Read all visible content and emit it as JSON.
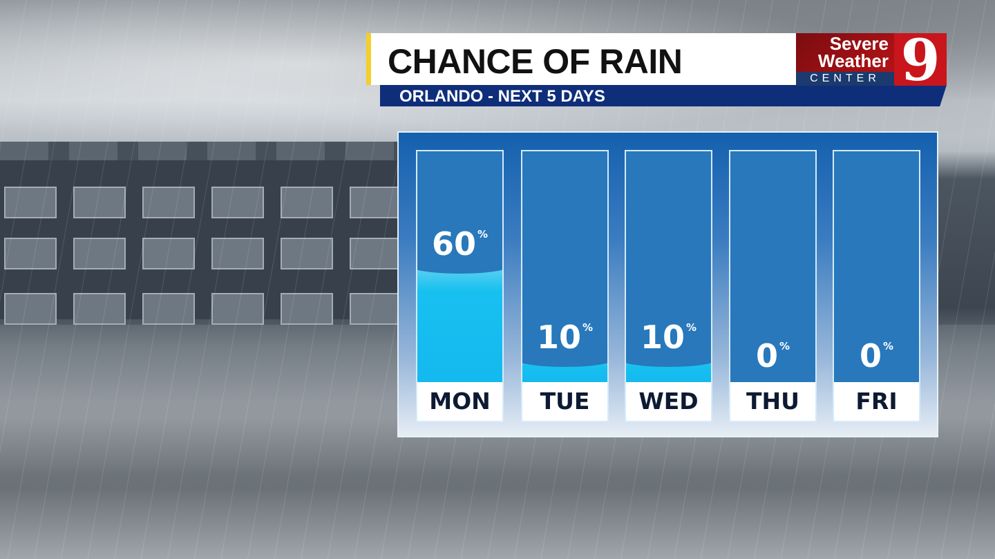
{
  "header": {
    "title": "CHANCE OF RAIN",
    "subtitle": "ORLANDO - NEXT 5 DAYS"
  },
  "logo": {
    "line1": "Severe",
    "line2": "Weather",
    "line3": "CENTER",
    "number": "9"
  },
  "colors": {
    "accent": "#f2cf2b",
    "navy": "#0f2e7a",
    "panel_blue": "#2878bb",
    "rain_fill": "#14b9ef",
    "logo_red": "#c8161c"
  },
  "chart_data": {
    "type": "bar",
    "title": "CHANCE OF RAIN",
    "subtitle": "ORLANDO - NEXT 5 DAYS",
    "categories": [
      "MON",
      "TUE",
      "WED",
      "THU",
      "FRI"
    ],
    "values": [
      60,
      10,
      10,
      0,
      0
    ],
    "unit": "%",
    "ylim": [
      0,
      100
    ]
  }
}
